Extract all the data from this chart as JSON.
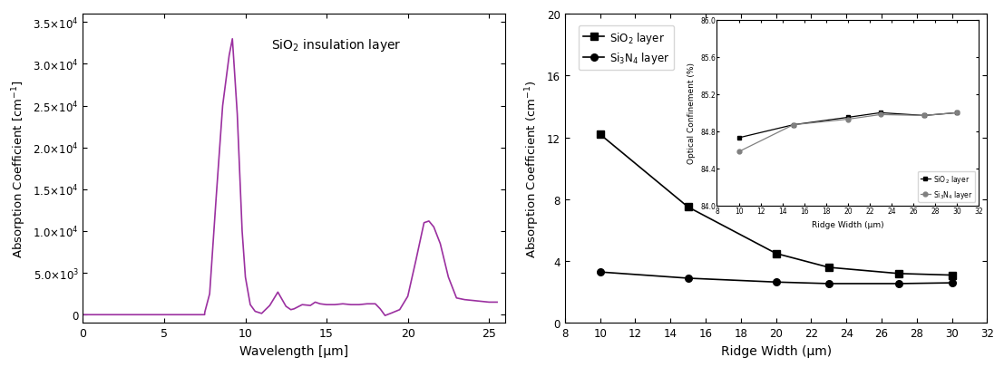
{
  "left_plot": {
    "title": "SiO$_2$ insulation layer",
    "xlabel": "Wavelength [μm]",
    "ylabel": "Absorption Coefficient [cm$^{-1}$]",
    "xlim": [
      0,
      26
    ],
    "ylim": [
      -1000,
      36000
    ],
    "color": "#9B30A0",
    "wavelength": [
      0.0,
      7.49,
      7.5,
      7.8,
      8.2,
      8.6,
      9.0,
      9.2,
      9.5,
      9.8,
      10.0,
      10.3,
      10.6,
      11.0,
      11.5,
      12.0,
      12.5,
      12.8,
      13.0,
      13.5,
      14.0,
      14.3,
      14.6,
      15.0,
      15.5,
      16.0,
      16.5,
      17.0,
      17.5,
      18.0,
      18.3,
      18.6,
      19.0,
      19.5,
      20.0,
      20.5,
      21.0,
      21.3,
      21.6,
      22.0,
      22.5,
      23.0,
      23.5,
      24.0,
      24.5,
      25.0,
      25.5
    ],
    "absorption": [
      0.0,
      0.0,
      300,
      2500,
      14000,
      25000,
      31000,
      33000,
      24000,
      10000,
      4500,
      1200,
      400,
      150,
      1100,
      2700,
      1000,
      600,
      700,
      1200,
      1100,
      1500,
      1300,
      1200,
      1200,
      1300,
      1200,
      1200,
      1300,
      1300,
      700,
      -100,
      200,
      600,
      2200,
      6500,
      11000,
      11200,
      10500,
      8500,
      4500,
      2000,
      1800,
      1700,
      1600,
      1500,
      1500
    ],
    "yticks": [
      0,
      5000,
      10000,
      15000,
      20000,
      25000,
      30000,
      35000
    ],
    "ytick_labels": [
      "0",
      "5.0×10$^3$",
      "1.0×10$^4$",
      "1.5×10$^4$",
      "2.0×10$^4$",
      "2.5×10$^4$",
      "3.0×10$^4$",
      "3.5×10$^4$"
    ],
    "xticks": [
      0,
      5,
      10,
      15,
      20,
      25
    ]
  },
  "right_plot": {
    "xlabel": "Ridge Width (μm)",
    "ylabel": "Absorption Coefficient (cm$^{-1}$)",
    "xlim": [
      8,
      32
    ],
    "ylim": [
      0,
      20
    ],
    "xticks": [
      8,
      10,
      12,
      14,
      16,
      18,
      20,
      22,
      24,
      26,
      28,
      30,
      32
    ],
    "yticks": [
      0,
      4,
      8,
      12,
      16,
      20
    ],
    "sio2_x": [
      10,
      15,
      20,
      23,
      27,
      30
    ],
    "sio2_y": [
      12.2,
      7.5,
      4.5,
      3.6,
      3.2,
      3.1
    ],
    "si3n4_x": [
      10,
      15,
      20,
      23,
      27,
      30
    ],
    "si3n4_y": [
      3.3,
      2.9,
      2.65,
      2.55,
      2.55,
      2.6
    ],
    "legend_sio2": "SiO$_2$ layer",
    "legend_si3n4": "Si$_3$N$_4$ layer",
    "inset": {
      "xlim": [
        8,
        32
      ],
      "ylim": [
        84.0,
        86.0
      ],
      "xticks": [
        8,
        10,
        12,
        14,
        16,
        18,
        20,
        22,
        24,
        26,
        28,
        30,
        32
      ],
      "ytick_labels": [
        "84.0",
        "84.4",
        "84.8",
        "85.2",
        "85.6",
        "86.0"
      ],
      "yticks": [
        84.0,
        84.4,
        84.8,
        85.2,
        85.6,
        86.0
      ],
      "xlabel": "Ridge Width (μm)",
      "ylabel": "Optical Confinement (%)",
      "sio2_x": [
        10,
        15,
        20,
        23,
        27,
        30
      ],
      "sio2_y": [
        84.73,
        84.87,
        84.95,
        85.0,
        84.97,
        85.0
      ],
      "si3n4_x": [
        10,
        15,
        20,
        23,
        27,
        30
      ],
      "si3n4_y": [
        84.58,
        84.87,
        84.93,
        84.98,
        84.97,
        85.0
      ],
      "legend_sio2": "SiO$_2$ layer",
      "legend_si3n4": "Si$_3$N$_4$ layer"
    }
  }
}
